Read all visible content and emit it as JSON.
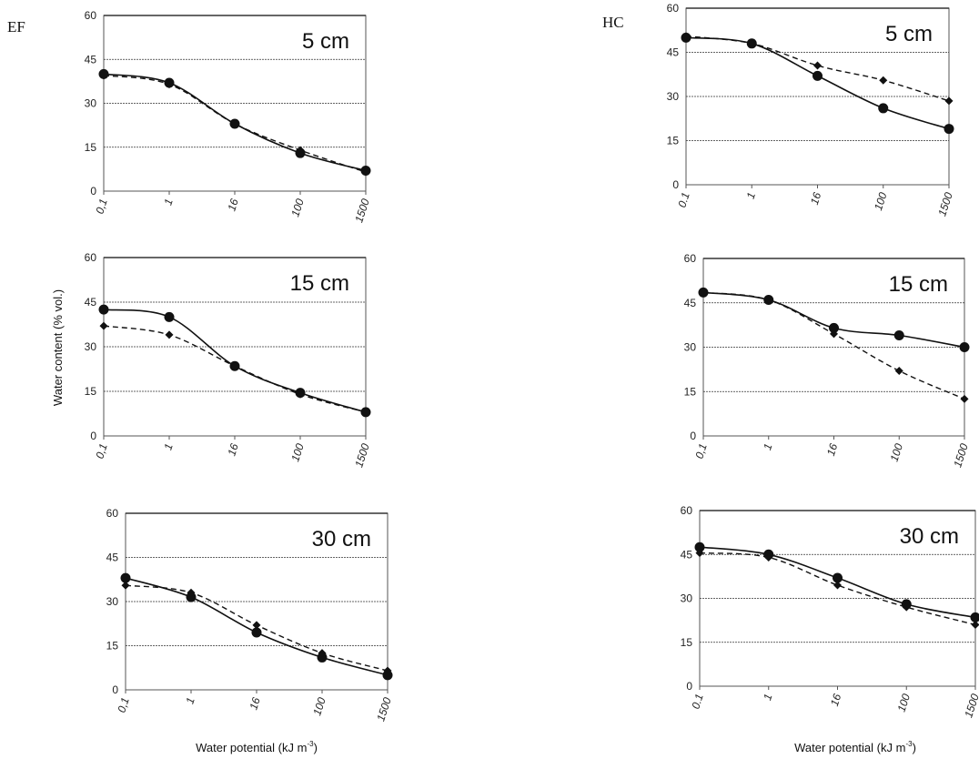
{
  "figure": {
    "left_tag": "EF",
    "right_tag": "HC",
    "ylabel": "Water content (% vol.)",
    "xlabel_prefix": "Water potential (kJ m",
    "xlabel_exponent": "-3",
    "xlabel_suffix": ")",
    "colors": {
      "line": "#111111",
      "grid": "#333333",
      "frame": "#555555"
    }
  },
  "chart_data": [
    {
      "type": "line",
      "title": "5 cm",
      "group": "EF",
      "categories": [
        "0,1",
        "1",
        "16",
        "100",
        "1500"
      ],
      "ylim": [
        0,
        60
      ],
      "yticks": [
        "0",
        "15",
        "30",
        "45",
        "60"
      ],
      "series": [
        {
          "style": "solid-circle",
          "values": [
            40,
            37,
            23,
            13,
            7
          ]
        },
        {
          "style": "dashed-diamond",
          "values": [
            39.5,
            36.5,
            23,
            14,
            6.5
          ]
        }
      ]
    },
    {
      "type": "line",
      "title": "15 cm",
      "group": "EF",
      "categories": [
        "0,1",
        "1",
        "16",
        "100",
        "1500"
      ],
      "ylim": [
        0,
        60
      ],
      "yticks": [
        "0",
        "15",
        "30",
        "45",
        "60"
      ],
      "series": [
        {
          "style": "solid-circle",
          "values": [
            42.5,
            40,
            23.5,
            14.5,
            8
          ]
        },
        {
          "style": "dashed-diamond",
          "values": [
            37,
            34,
            23.5,
            14,
            8
          ]
        }
      ]
    },
    {
      "type": "line",
      "title": "30 cm",
      "group": "EF",
      "categories": [
        "0,1",
        "1",
        "16",
        "100",
        "1500"
      ],
      "ylim": [
        0,
        60
      ],
      "yticks": [
        "0",
        "15",
        "30",
        "45",
        "60"
      ],
      "series": [
        {
          "style": "solid-circle",
          "values": [
            38,
            31.5,
            19.5,
            11,
            5
          ]
        },
        {
          "style": "dashed-diamond",
          "values": [
            35.5,
            33,
            22,
            12.5,
            6.5
          ]
        }
      ]
    },
    {
      "type": "line",
      "title": "5 cm",
      "group": "HC",
      "categories": [
        "0.1",
        "1",
        "16",
        "100",
        "1500"
      ],
      "ylim": [
        0,
        60
      ],
      "yticks": [
        "0",
        "15",
        "30",
        "45",
        "60"
      ],
      "series": [
        {
          "style": "solid-circle",
          "values": [
            50,
            48,
            37,
            26,
            19
          ]
        },
        {
          "style": "dashed-diamond",
          "values": [
            50.5,
            48,
            40.5,
            35.5,
            28.5
          ]
        }
      ]
    },
    {
      "type": "line",
      "title": "15 cm",
      "group": "HC",
      "categories": [
        "0,1",
        "1",
        "16",
        "100",
        "1500"
      ],
      "ylim": [
        0,
        60
      ],
      "yticks": [
        "0",
        "15",
        "30",
        "45",
        "60"
      ],
      "series": [
        {
          "style": "solid-circle",
          "values": [
            48.5,
            46,
            36.5,
            34,
            30
          ]
        },
        {
          "style": "dashed-diamond",
          "values": [
            48.5,
            46,
            34.5,
            22,
            12.5
          ]
        }
      ]
    },
    {
      "type": "line",
      "title": "30 cm",
      "group": "HC",
      "categories": [
        "0.1",
        "1",
        "16",
        "100",
        "1500"
      ],
      "ylim": [
        0,
        60
      ],
      "yticks": [
        "0",
        "15",
        "30",
        "45",
        "60"
      ],
      "series": [
        {
          "style": "solid-circle",
          "values": [
            47.5,
            45,
            37,
            28,
            23.5
          ]
        },
        {
          "style": "dashed-diamond",
          "values": [
            45.5,
            44,
            34.5,
            27,
            21
          ]
        }
      ]
    }
  ]
}
